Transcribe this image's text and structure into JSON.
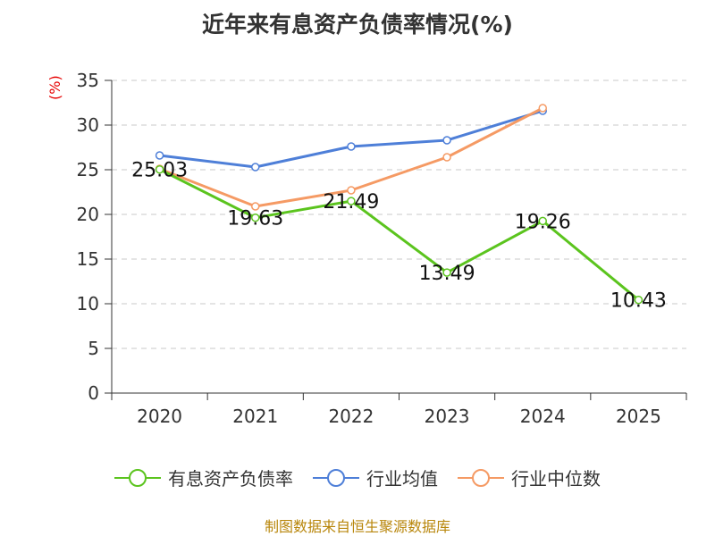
{
  "chart_data": {
    "type": "line",
    "title": "近年来有息资产负债率情况(%)",
    "ylabel": "(%)",
    "xlabel": "",
    "categories": [
      "2020",
      "2021",
      "2022",
      "2023",
      "2024",
      "2025"
    ],
    "ylim": [
      0,
      35
    ],
    "yticks": [
      0,
      5,
      10,
      15,
      20,
      25,
      30,
      35
    ],
    "grid": true,
    "legend_position": "bottom",
    "series": [
      {
        "name": "有息资产负债率",
        "color": "#5bc41e",
        "values": [
          25.03,
          19.63,
          21.49,
          13.49,
          19.26,
          10.43
        ],
        "labels": [
          "25.03",
          "19.63",
          "21.49",
          "13.49",
          "19.26",
          "10.43"
        ]
      },
      {
        "name": "行业均值",
        "color": "#4e7fd8",
        "values": [
          26.6,
          25.3,
          27.6,
          28.3,
          31.6,
          null
        ]
      },
      {
        "name": "行业中位数",
        "color": "#f59a64",
        "values": [
          25.1,
          20.9,
          22.7,
          26.4,
          31.9,
          null
        ]
      }
    ]
  },
  "footer": {
    "source": "制图数据来自恒生聚源数据库"
  }
}
